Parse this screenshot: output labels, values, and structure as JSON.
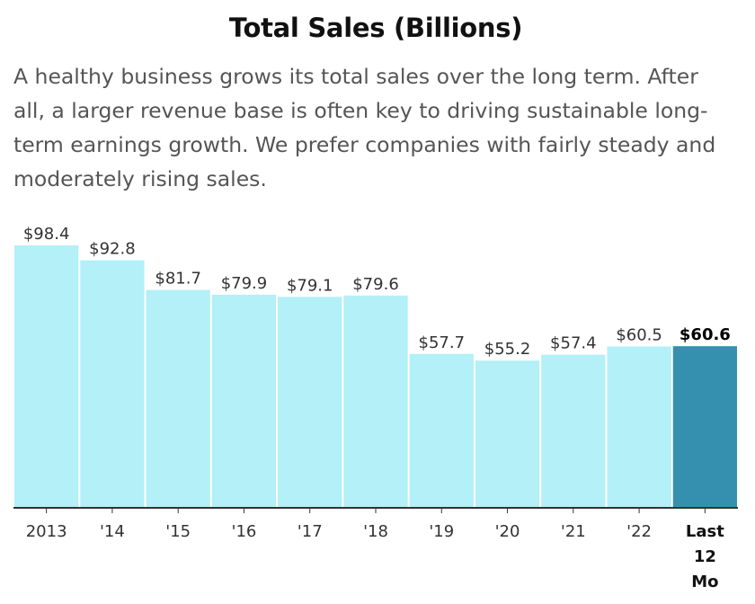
{
  "header": {
    "title": "Total Sales (Billions)",
    "description": "A healthy business grows its total sales over the long term. After all, a larger revenue base is often key to driving sustainable long-term earnings growth. We prefer companies with fairly steady and moderately rising sales."
  },
  "colors": {
    "bar": "#b3f0f8",
    "highlight_bar": "#3590b0",
    "axis": "#333333"
  },
  "chart_data": {
    "type": "bar",
    "title": "Total Sales (Billions)",
    "categories": [
      "2013",
      "'14",
      "'15",
      "'16",
      "'17",
      "'18",
      "'19",
      "'20",
      "'21",
      "'22",
      "Last 12 Mo"
    ],
    "values": [
      98.4,
      92.8,
      81.7,
      79.9,
      79.1,
      79.6,
      57.7,
      55.2,
      57.4,
      60.5,
      60.6
    ],
    "value_labels": [
      "$98.4",
      "$92.8",
      "$81.7",
      "$79.9",
      "$79.1",
      "$79.6",
      "$57.7",
      "$55.2",
      "$57.4",
      "$60.5",
      "$60.6"
    ],
    "highlight_index": 10,
    "ylim": [
      0,
      98.4
    ],
    "grid": false,
    "xlabel": "",
    "ylabel": ""
  }
}
